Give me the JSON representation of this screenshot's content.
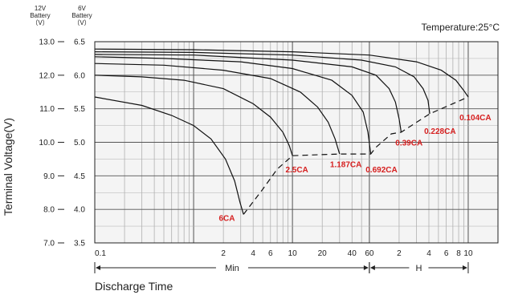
{
  "chart_data": {
    "type": "line",
    "title": "",
    "temperature_label": "Temperature:25°C",
    "xlabel": "Discharge Time",
    "ylabel": "Terminal Voltage(V)",
    "y_axes": [
      {
        "header": [
          "12V",
          "Battery",
          "（V）"
        ],
        "ticks": [
          "13.0",
          "12.0",
          "11.0",
          "10.0",
          "9.0",
          "8.0",
          "7.0"
        ],
        "range": [
          7.0,
          13.0
        ]
      },
      {
        "header": [
          "6V",
          "Battery",
          "（V）"
        ],
        "ticks": [
          "6.5",
          "6.0",
          "5.5",
          "5.0",
          "4.5",
          "4.0",
          "3.5"
        ],
        "range": [
          3.5,
          6.5
        ]
      }
    ],
    "x_axis": {
      "scale": "log",
      "unit_min_range": [
        0.1,
        60
      ],
      "unit_h_range": [
        1,
        10
      ],
      "tick_labels": [
        {
          "t": 0.1,
          "label": "0.1"
        },
        {
          "t": 2,
          "label": "2"
        },
        {
          "t": 4,
          "label": "4"
        },
        {
          "t": 6,
          "label": "6"
        },
        {
          "t": 10,
          "label": "10"
        },
        {
          "t": 20,
          "label": "20"
        },
        {
          "t": 40,
          "label": "40"
        },
        {
          "t": 60,
          "label": "60"
        },
        {
          "t": 120,
          "label": "2"
        },
        {
          "t": 240,
          "label": "4"
        },
        {
          "t": 360,
          "label": "6"
        },
        {
          "t": 480,
          "label": "8"
        },
        {
          "t": 600,
          "label": "10"
        }
      ],
      "segments": [
        {
          "label": "Min",
          "from": 0.1,
          "to": 60
        },
        {
          "label": "H",
          "from": 60,
          "to": 600
        }
      ]
    },
    "series": [
      {
        "name": "6CA",
        "curve": [
          [
            0.1,
            11.35
          ],
          [
            0.3,
            11.1
          ],
          [
            0.6,
            10.8
          ],
          [
            1,
            10.5
          ],
          [
            1.5,
            10.1
          ],
          [
            2.1,
            9.5
          ],
          [
            2.6,
            8.85
          ],
          [
            2.95,
            8.2
          ],
          [
            3.2,
            7.85
          ]
        ]
      },
      {
        "name": "2.5CA",
        "curve": [
          [
            0.1,
            12.0
          ],
          [
            0.3,
            11.95
          ],
          [
            0.8,
            11.85
          ],
          [
            2,
            11.6
          ],
          [
            4,
            11.15
          ],
          [
            6,
            10.75
          ],
          [
            8,
            10.3
          ],
          [
            9.3,
            9.9
          ],
          [
            10,
            9.6
          ]
        ]
      },
      {
        "name": "1.187CA",
        "curve": [
          [
            0.1,
            12.35
          ],
          [
            0.5,
            12.3
          ],
          [
            2,
            12.15
          ],
          [
            6,
            11.9
          ],
          [
            12,
            11.5
          ],
          [
            18,
            11.05
          ],
          [
            23,
            10.6
          ],
          [
            27,
            10.1
          ],
          [
            30,
            9.65
          ]
        ]
      },
      {
        "name": "0.692CA",
        "curve": [
          [
            0.1,
            12.55
          ],
          [
            0.5,
            12.5
          ],
          [
            3,
            12.4
          ],
          [
            10,
            12.2
          ],
          [
            25,
            11.85
          ],
          [
            40,
            11.4
          ],
          [
            52,
            10.9
          ],
          [
            58,
            10.3
          ],
          [
            62,
            9.65
          ]
        ]
      },
      {
        "name": "0.39CA",
        "curve": [
          [
            0.1,
            12.62
          ],
          [
            1,
            12.6
          ],
          [
            10,
            12.45
          ],
          [
            40,
            12.25
          ],
          [
            70,
            12.0
          ],
          [
            95,
            11.6
          ],
          [
            110,
            11.2
          ],
          [
            120,
            10.7
          ],
          [
            126,
            10.3
          ]
        ]
      },
      {
        "name": "0.228CA",
        "curve": [
          [
            0.1,
            12.7
          ],
          [
            1,
            12.68
          ],
          [
            10,
            12.6
          ],
          [
            50,
            12.45
          ],
          [
            110,
            12.25
          ],
          [
            170,
            11.95
          ],
          [
            210,
            11.6
          ],
          [
            235,
            11.25
          ],
          [
            245,
            10.85
          ]
        ]
      },
      {
        "name": "0.104CA",
        "curve": [
          [
            0.1,
            12.78
          ],
          [
            1,
            12.76
          ],
          [
            10,
            12.7
          ],
          [
            60,
            12.6
          ],
          [
            180,
            12.4
          ],
          [
            320,
            12.15
          ],
          [
            450,
            11.85
          ],
          [
            540,
            11.55
          ],
          [
            600,
            11.35
          ]
        ]
      }
    ],
    "final_voltage_line": [
      [
        3.2,
        7.85
      ],
      [
        5,
        8.6
      ],
      [
        7,
        9.2
      ],
      [
        10,
        9.6
      ],
      [
        30,
        9.65
      ],
      [
        62,
        9.65
      ],
      [
        70,
        9.85
      ],
      [
        100,
        10.25
      ],
      [
        126,
        10.3
      ],
      [
        245,
        10.85
      ],
      [
        600,
        11.35
      ]
    ],
    "rate_labels": [
      "6CA",
      "2.5CA",
      "1.187CA",
      "0.692CA",
      "0.39CA",
      "0.228CA",
      "0.104CA"
    ]
  }
}
